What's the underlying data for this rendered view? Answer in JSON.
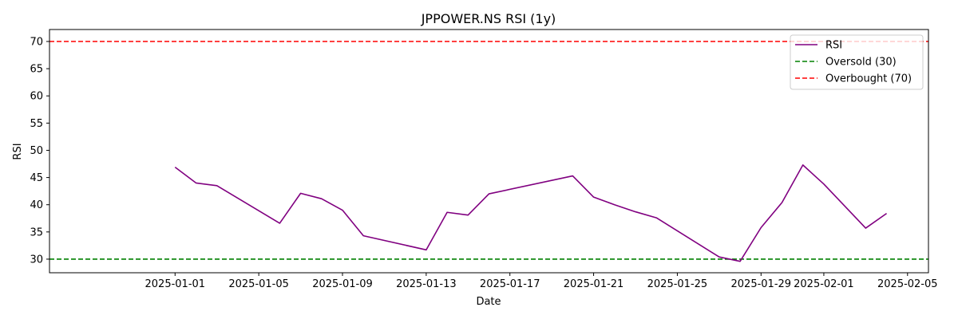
{
  "chart_data": {
    "type": "line",
    "title": "JPPOWER.NS RSI (1y)",
    "xlabel": "Date",
    "ylabel": "RSI",
    "x_axis": {
      "type": "date",
      "range": [
        "2024-12-26",
        "2025-02-06"
      ],
      "ticks": [
        "2025-01-01",
        "2025-01-05",
        "2025-01-09",
        "2025-01-13",
        "2025-01-17",
        "2025-01-21",
        "2025-01-25",
        "2025-01-29",
        "2025-02-01",
        "2025-02-05"
      ]
    },
    "y_axis": {
      "range": [
        27.5,
        72.2
      ],
      "ticks": [
        30,
        35,
        40,
        45,
        50,
        55,
        60,
        65,
        70
      ]
    },
    "grid": false,
    "legend_position": "top-right",
    "series": [
      {
        "name": "RSI",
        "color": "#800080",
        "style": "solid",
        "points": [
          {
            "x": "2025-01-01",
            "y": 46.9
          },
          {
            "x": "2025-01-02",
            "y": 44.0
          },
          {
            "x": "2025-01-03",
            "y": 43.5
          },
          {
            "x": "2025-01-06",
            "y": 36.6
          },
          {
            "x": "2025-01-07",
            "y": 42.1
          },
          {
            "x": "2025-01-08",
            "y": 41.1
          },
          {
            "x": "2025-01-09",
            "y": 39.0
          },
          {
            "x": "2025-01-10",
            "y": 34.3
          },
          {
            "x": "2025-01-13",
            "y": 31.7
          },
          {
            "x": "2025-01-14",
            "y": 38.6
          },
          {
            "x": "2025-01-15",
            "y": 38.1
          },
          {
            "x": "2025-01-16",
            "y": 42.0
          },
          {
            "x": "2025-01-20",
            "y": 45.3
          },
          {
            "x": "2025-01-21",
            "y": 41.4
          },
          {
            "x": "2025-01-22",
            "y": 40.0
          },
          {
            "x": "2025-01-23",
            "y": 38.7
          },
          {
            "x": "2025-01-24",
            "y": 37.6
          },
          {
            "x": "2025-01-27",
            "y": 30.4
          },
          {
            "x": "2025-01-28",
            "y": 29.6
          },
          {
            "x": "2025-01-29",
            "y": 35.8
          },
          {
            "x": "2025-01-30",
            "y": 40.4
          },
          {
            "x": "2025-01-31",
            "y": 47.3
          },
          {
            "x": "2025-02-01",
            "y": 43.8
          },
          {
            "x": "2025-02-03",
            "y": 35.7
          },
          {
            "x": "2025-02-04",
            "y": 38.4
          }
        ]
      }
    ],
    "reference_lines": [
      {
        "name": "Oversold (30)",
        "y": 30,
        "color": "#008000",
        "style": "dashed"
      },
      {
        "name": "Overbought (70)",
        "y": 70,
        "color": "#ff0000",
        "style": "dashed"
      }
    ]
  }
}
